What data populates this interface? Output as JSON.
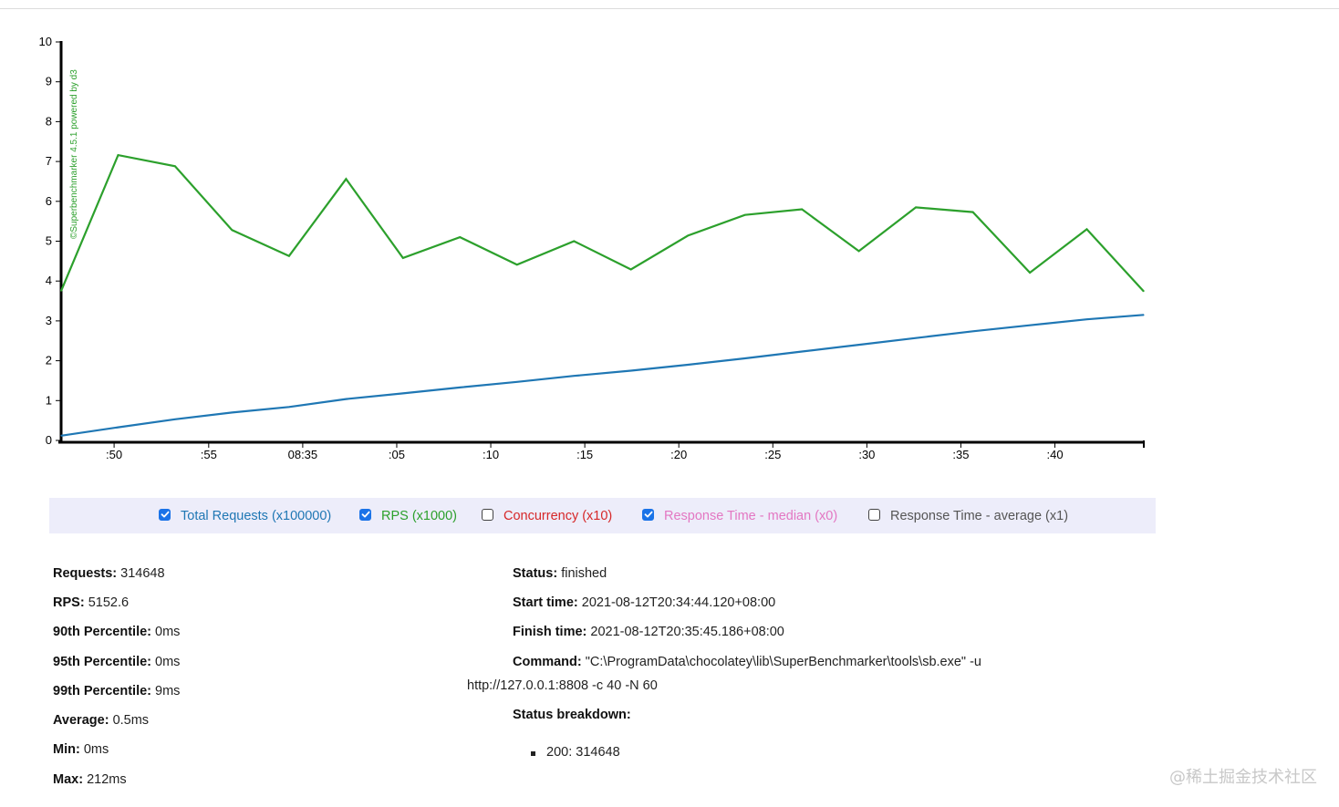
{
  "chart_data": {
    "type": "line",
    "title": "",
    "credit": "©Superbenchmarker 4.5.1 powered by d3",
    "ylim": [
      0,
      10
    ],
    "y_ticks": [
      "0",
      "1",
      "2",
      "3",
      "4",
      "5",
      "6",
      "7",
      "8",
      "9",
      "10"
    ],
    "xlim": [
      0,
      19
    ],
    "x": [
      0,
      1,
      2,
      3,
      4,
      5,
      6,
      7,
      8,
      9,
      10,
      11,
      12,
      13,
      14,
      15,
      16,
      17,
      18,
      19
    ],
    "x_ticks": [
      {
        "pos": 0.93,
        "label": ":50"
      },
      {
        "pos": 2.59,
        "label": ":55"
      },
      {
        "pos": 4.24,
        "label": "08:35"
      },
      {
        "pos": 5.89,
        "label": ":05"
      },
      {
        "pos": 7.54,
        "label": ":10"
      },
      {
        "pos": 9.19,
        "label": ":15"
      },
      {
        "pos": 10.84,
        "label": ":20"
      },
      {
        "pos": 12.49,
        "label": ":25"
      },
      {
        "pos": 14.14,
        "label": ":30"
      },
      {
        "pos": 15.79,
        "label": ":35"
      },
      {
        "pos": 17.44,
        "label": ":40"
      }
    ],
    "series": [
      {
        "name": "Total Requests (x100000)",
        "color": "#1f77b4",
        "values": [
          0.12,
          0.33,
          0.53,
          0.7,
          0.84,
          1.04,
          1.18,
          1.33,
          1.47,
          1.62,
          1.75,
          1.9,
          2.06,
          2.23,
          2.4,
          2.57,
          2.74,
          2.89,
          3.04,
          3.15
        ]
      },
      {
        "name": "RPS (x1000)",
        "color": "#2ca02c",
        "values": [
          3.75,
          7.16,
          6.88,
          5.28,
          4.63,
          6.56,
          4.58,
          5.1,
          4.41,
          5.0,
          4.29,
          5.14,
          5.66,
          5.8,
          4.75,
          5.85,
          5.73,
          4.21,
          5.3,
          3.74
        ]
      }
    ]
  },
  "legend": [
    {
      "label": "Total Requests (x100000)",
      "checked": true,
      "color": "#1f77b4"
    },
    {
      "label": "RPS (x1000)",
      "checked": true,
      "color": "#2ca02c"
    },
    {
      "label": "Concurrency (x10)",
      "checked": false,
      "color": "#d62728"
    },
    {
      "label": "Response Time - median (x0)",
      "checked": true,
      "color": "#e377c2"
    },
    {
      "label": "Response Time - average (x1)",
      "checked": false,
      "color": "#555555"
    }
  ],
  "stats_left": [
    {
      "label": "Requests:",
      "value": "314648"
    },
    {
      "label": "RPS:",
      "value": "5152.6"
    },
    {
      "label": "90th Percentile:",
      "value": "0ms"
    },
    {
      "label": "95th Percentile:",
      "value": "0ms"
    },
    {
      "label": "99th Percentile:",
      "value": "9ms"
    },
    {
      "label": "Average:",
      "value": "0.5ms"
    },
    {
      "label": "Min:",
      "value": "0ms"
    },
    {
      "label": "Max:",
      "value": "212ms"
    }
  ],
  "stats_right": {
    "status": {
      "label": "Status:",
      "value": "finished"
    },
    "start_time": {
      "label": "Start time:",
      "value": "2021-08-12T20:34:44.120+08:00"
    },
    "finish_time": {
      "label": "Finish time:",
      "value": "2021-08-12T20:35:45.186+08:00"
    },
    "command": {
      "label": "Command:",
      "value_line1": "\"C:\\ProgramData\\chocolatey\\lib\\SuperBenchmarker\\tools\\sb.exe\" -u",
      "value_line2": "http://127.0.0.1:8808 -c 40 -N 60"
    },
    "breakdown": {
      "label": "Status breakdown:",
      "items": [
        "200: 314648"
      ]
    }
  },
  "watermark": "@稀土掘金技术社区"
}
